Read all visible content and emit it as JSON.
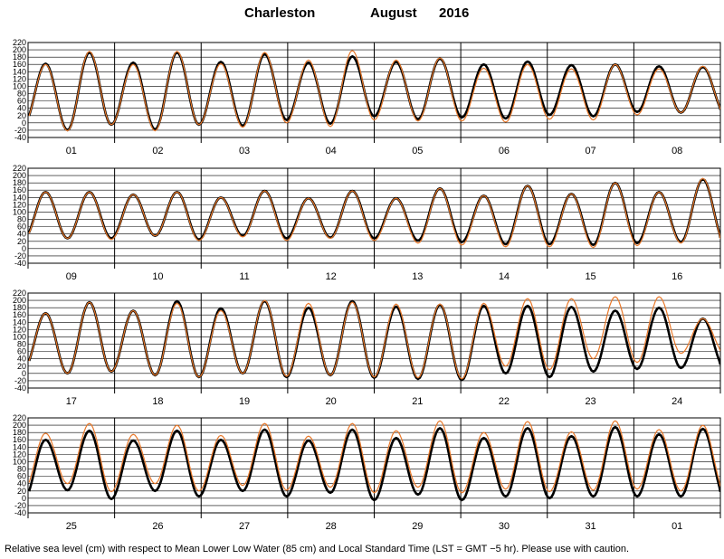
{
  "header": {
    "station": "Charleston",
    "month": "August",
    "year": "2016"
  },
  "caption": "Relative sea level (cm) with respect to Mean Lower Low Water (85 cm) and Local Standard Time (LST = GMT −5 hr). Please use with caution.",
  "colors": {
    "observed": "#000000",
    "predicted": "#e8782a",
    "grid": "#000000"
  },
  "chart_data": [
    {
      "type": "line",
      "panel": 1,
      "day_labels": [
        "01",
        "02",
        "03",
        "04",
        "05",
        "06",
        "07",
        "08"
      ],
      "ylim": [
        -40,
        220
      ],
      "yticks": [
        -40,
        -20,
        0,
        20,
        40,
        60,
        80,
        100,
        120,
        140,
        160,
        180,
        200,
        220
      ],
      "series": [
        {
          "name": "observed",
          "highs": [
            162,
            193,
            165,
            193,
            167,
            188,
            165,
            182,
            167,
            176,
            160,
            168,
            158,
            160,
            155,
            153
          ],
          "lows": [
            -5,
            -20,
            -5,
            -18,
            -5,
            -8,
            8,
            -2,
            18,
            10,
            15,
            12,
            22,
            18,
            30,
            28
          ]
        },
        {
          "name": "predicted",
          "highs": [
            160,
            196,
            160,
            196,
            162,
            193,
            172,
            198,
            172,
            178,
            150,
            160,
            148,
            160,
            148,
            155
          ],
          "lows": [
            -5,
            -22,
            -5,
            -22,
            -5,
            -12,
            0,
            -10,
            8,
            5,
            5,
            2,
            10,
            8,
            22,
            28
          ]
        }
      ]
    },
    {
      "type": "line",
      "panel": 2,
      "day_labels": [
        "09",
        "10",
        "11",
        "12",
        "13",
        "14",
        "15",
        "16"
      ],
      "ylim": [
        -40,
        220
      ],
      "yticks": [
        -40,
        -20,
        0,
        20,
        40,
        60,
        80,
        100,
        120,
        140,
        160,
        180,
        200,
        220
      ],
      "series": [
        {
          "name": "observed",
          "highs": [
            155,
            155,
            148,
            155,
            140,
            158,
            138,
            158,
            138,
            165,
            145,
            172,
            150,
            180,
            155,
            190
          ],
          "lows": [
            25,
            28,
            28,
            35,
            25,
            35,
            28,
            30,
            28,
            22,
            18,
            12,
            12,
            10,
            15,
            18
          ]
        },
        {
          "name": "predicted",
          "highs": [
            155,
            155,
            148,
            155,
            140,
            158,
            138,
            158,
            138,
            165,
            145,
            172,
            150,
            180,
            155,
            192
          ],
          "lows": [
            22,
            28,
            25,
            35,
            22,
            32,
            22,
            28,
            22,
            15,
            10,
            5,
            5,
            3,
            8,
            15
          ]
        }
      ]
    },
    {
      "type": "line",
      "panel": 3,
      "day_labels": [
        "17",
        "18",
        "19",
        "20",
        "21",
        "22",
        "23",
        "24"
      ],
      "ylim": [
        -40,
        220
      ],
      "yticks": [
        -40,
        -20,
        0,
        20,
        40,
        60,
        80,
        100,
        120,
        140,
        160,
        180,
        200,
        220
      ],
      "series": [
        {
          "name": "observed",
          "highs": [
            165,
            195,
            172,
            198,
            178,
            198,
            180,
            198,
            183,
            188,
            185,
            185,
            182,
            172,
            180,
            150
          ],
          "lows": [
            12,
            0,
            5,
            -5,
            -10,
            0,
            -10,
            -5,
            -12,
            -15,
            -18,
            0,
            -10,
            5,
            12,
            15
          ]
        },
        {
          "name": "predicted",
          "highs": [
            165,
            195,
            172,
            192,
            172,
            200,
            192,
            195,
            190,
            190,
            192,
            205,
            205,
            210,
            210,
            150
          ],
          "lows": [
            12,
            0,
            5,
            -5,
            -10,
            0,
            -8,
            -5,
            -10,
            -12,
            -15,
            20,
            10,
            40,
            30,
            55
          ]
        }
      ]
    },
    {
      "type": "line",
      "panel": 4,
      "day_labels": [
        "25",
        "26",
        "27",
        "28",
        "29",
        "30",
        "31",
        "01"
      ],
      "ylim": [
        -40,
        220
      ],
      "yticks": [
        -40,
        -20,
        0,
        20,
        40,
        60,
        80,
        100,
        120,
        140,
        160,
        180,
        200,
        220
      ],
      "series": [
        {
          "name": "observed",
          "highs": [
            160,
            185,
            158,
            185,
            160,
            188,
            158,
            188,
            165,
            192,
            165,
            192,
            170,
            195,
            175,
            190
          ],
          "lows": [
            -5,
            22,
            -2,
            20,
            5,
            20,
            5,
            15,
            -5,
            10,
            -5,
            5,
            0,
            5,
            5,
            5
          ]
        },
        {
          "name": "predicted",
          "highs": [
            178,
            205,
            175,
            200,
            172,
            205,
            170,
            205,
            185,
            212,
            180,
            210,
            182,
            212,
            188,
            200
          ],
          "lows": [
            20,
            40,
            18,
            40,
            20,
            35,
            22,
            30,
            15,
            30,
            15,
            25,
            18,
            22,
            25,
            20
          ]
        }
      ]
    }
  ]
}
